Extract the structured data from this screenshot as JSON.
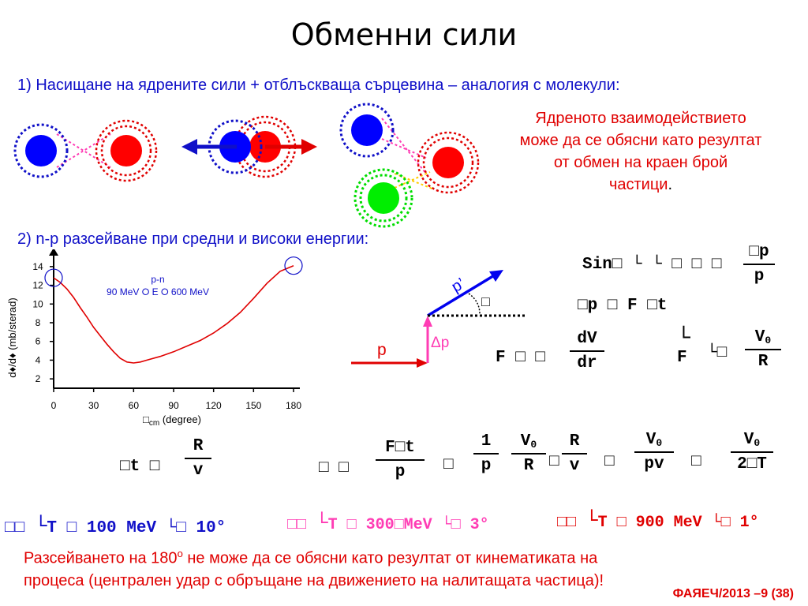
{
  "slide": {
    "title": "Обменни сили",
    "point1": "1) Насищане на ядрените сили + отблъскваща сърцевина – аналогия с молекули:",
    "red_text": [
      "Ядреното взаимодействието",
      "може да се обясни като резултат",
      "от обмен на краен  брой",
      "частици"
    ],
    "red_text_end": ".",
    "point2": "2) n-p разсейване при средни и високи енергии:",
    "bottom_text": [
      "Разсейването на 180",
      "o",
      " не може да се обясни като резултат от кинематиката на",
      "процеса (централен удар с обръщане на движението на налитащата частица)!"
    ],
    "footer": "ФАЯЕЧ/2013 –9 (38)"
  },
  "colors": {
    "blue": "#1010c8",
    "red": "#e00000",
    "green": "#00dd00",
    "pink": "#ff3cb4",
    "magenta_text": "#ff3cb4"
  },
  "chart_data": {
    "type": "line",
    "ylabel": "d♦/d♦ (mb/sterad)",
    "xlabel_sym": "□",
    "xlabel_sub": "cm",
    "xlabel_rest": " (degree)",
    "x_ticks": [
      0,
      30,
      60,
      90,
      120,
      150,
      180
    ],
    "y_ticks": [
      2,
      4,
      6,
      8,
      10,
      12,
      14
    ],
    "xlim": [
      0,
      180
    ],
    "ylim": [
      1,
      15
    ],
    "annotation_top": "p-n",
    "annotation_bottom": "90 MeV ⭘ E ⭘ 600 MeV",
    "series": [
      {
        "x": [
          0,
          5,
          10,
          15,
          20,
          25,
          30,
          35,
          40,
          45,
          50,
          55,
          60,
          65,
          70,
          80,
          90,
          100,
          110,
          120,
          130,
          140,
          150,
          160,
          170,
          180
        ],
        "values": [
          12.8,
          12.3,
          11.6,
          10.7,
          9.6,
          8.6,
          7.5,
          6.6,
          5.7,
          4.9,
          4.2,
          3.8,
          3.7,
          3.8,
          4.0,
          4.4,
          4.9,
          5.5,
          6.1,
          6.9,
          7.9,
          9.1,
          10.6,
          12.2,
          13.5,
          14.1
        ]
      }
    ]
  },
  "diagram": {
    "p_label": "p",
    "p_prime_label": "p’",
    "dp_label": "Δp",
    "theta_box": "□"
  },
  "formulas": {
    "sin_lhs": "Sin□ └ └ □ □ □",
    "sin_num": "□p",
    "sin_den": "p",
    "ft_line": "□p □ F □t",
    "f_lhs": "F □ □",
    "f_num": "dV",
    "f_den": "dr",
    "f2_lhs": "└",
    "f2_f": "F",
    "f2_mid": "└□",
    "f2_num": "V",
    "f2_num_sub": "0",
    "f2_den": "R",
    "dt_lhs": "□t □",
    "dt_num": "R",
    "dt_den": "v",
    "chain_lhs": "□ □",
    "c1_num": "F□t",
    "c1_den": "p",
    "eq1": "□",
    "c2_num": "1",
    "c2_den": "p",
    "c3_num": "V",
    "c3_num_sub": "0",
    "c3_den": "R",
    "mid_box": "□",
    "c4_num": "R",
    "c4_den": "v",
    "eq2": "□",
    "c5_num": "V",
    "c5_num_sub": "0",
    "c5_den": "pv",
    "eq3": "□",
    "c6_num": "V",
    "c6_num_sub": "0",
    "c6_den": "2□T",
    "case1_pre": "□□ ",
    "case1_bar": "└",
    "case1_t": "T",
    "case1_val": " □ 100 MeV ",
    "case1_ang": "└□ 10°",
    "case2_pre": "□□ ",
    "case2_bar": "└",
    "case2_t": "T",
    "case2_val": " □ 300□MeV ",
    "case2_ang": "└□ 3°",
    "case3_pre": "□□ ",
    "case3_bar": "└",
    "case3_t": "T",
    "case3_val": " □ 900 MeV ",
    "case3_ang": "└□ 1°"
  }
}
